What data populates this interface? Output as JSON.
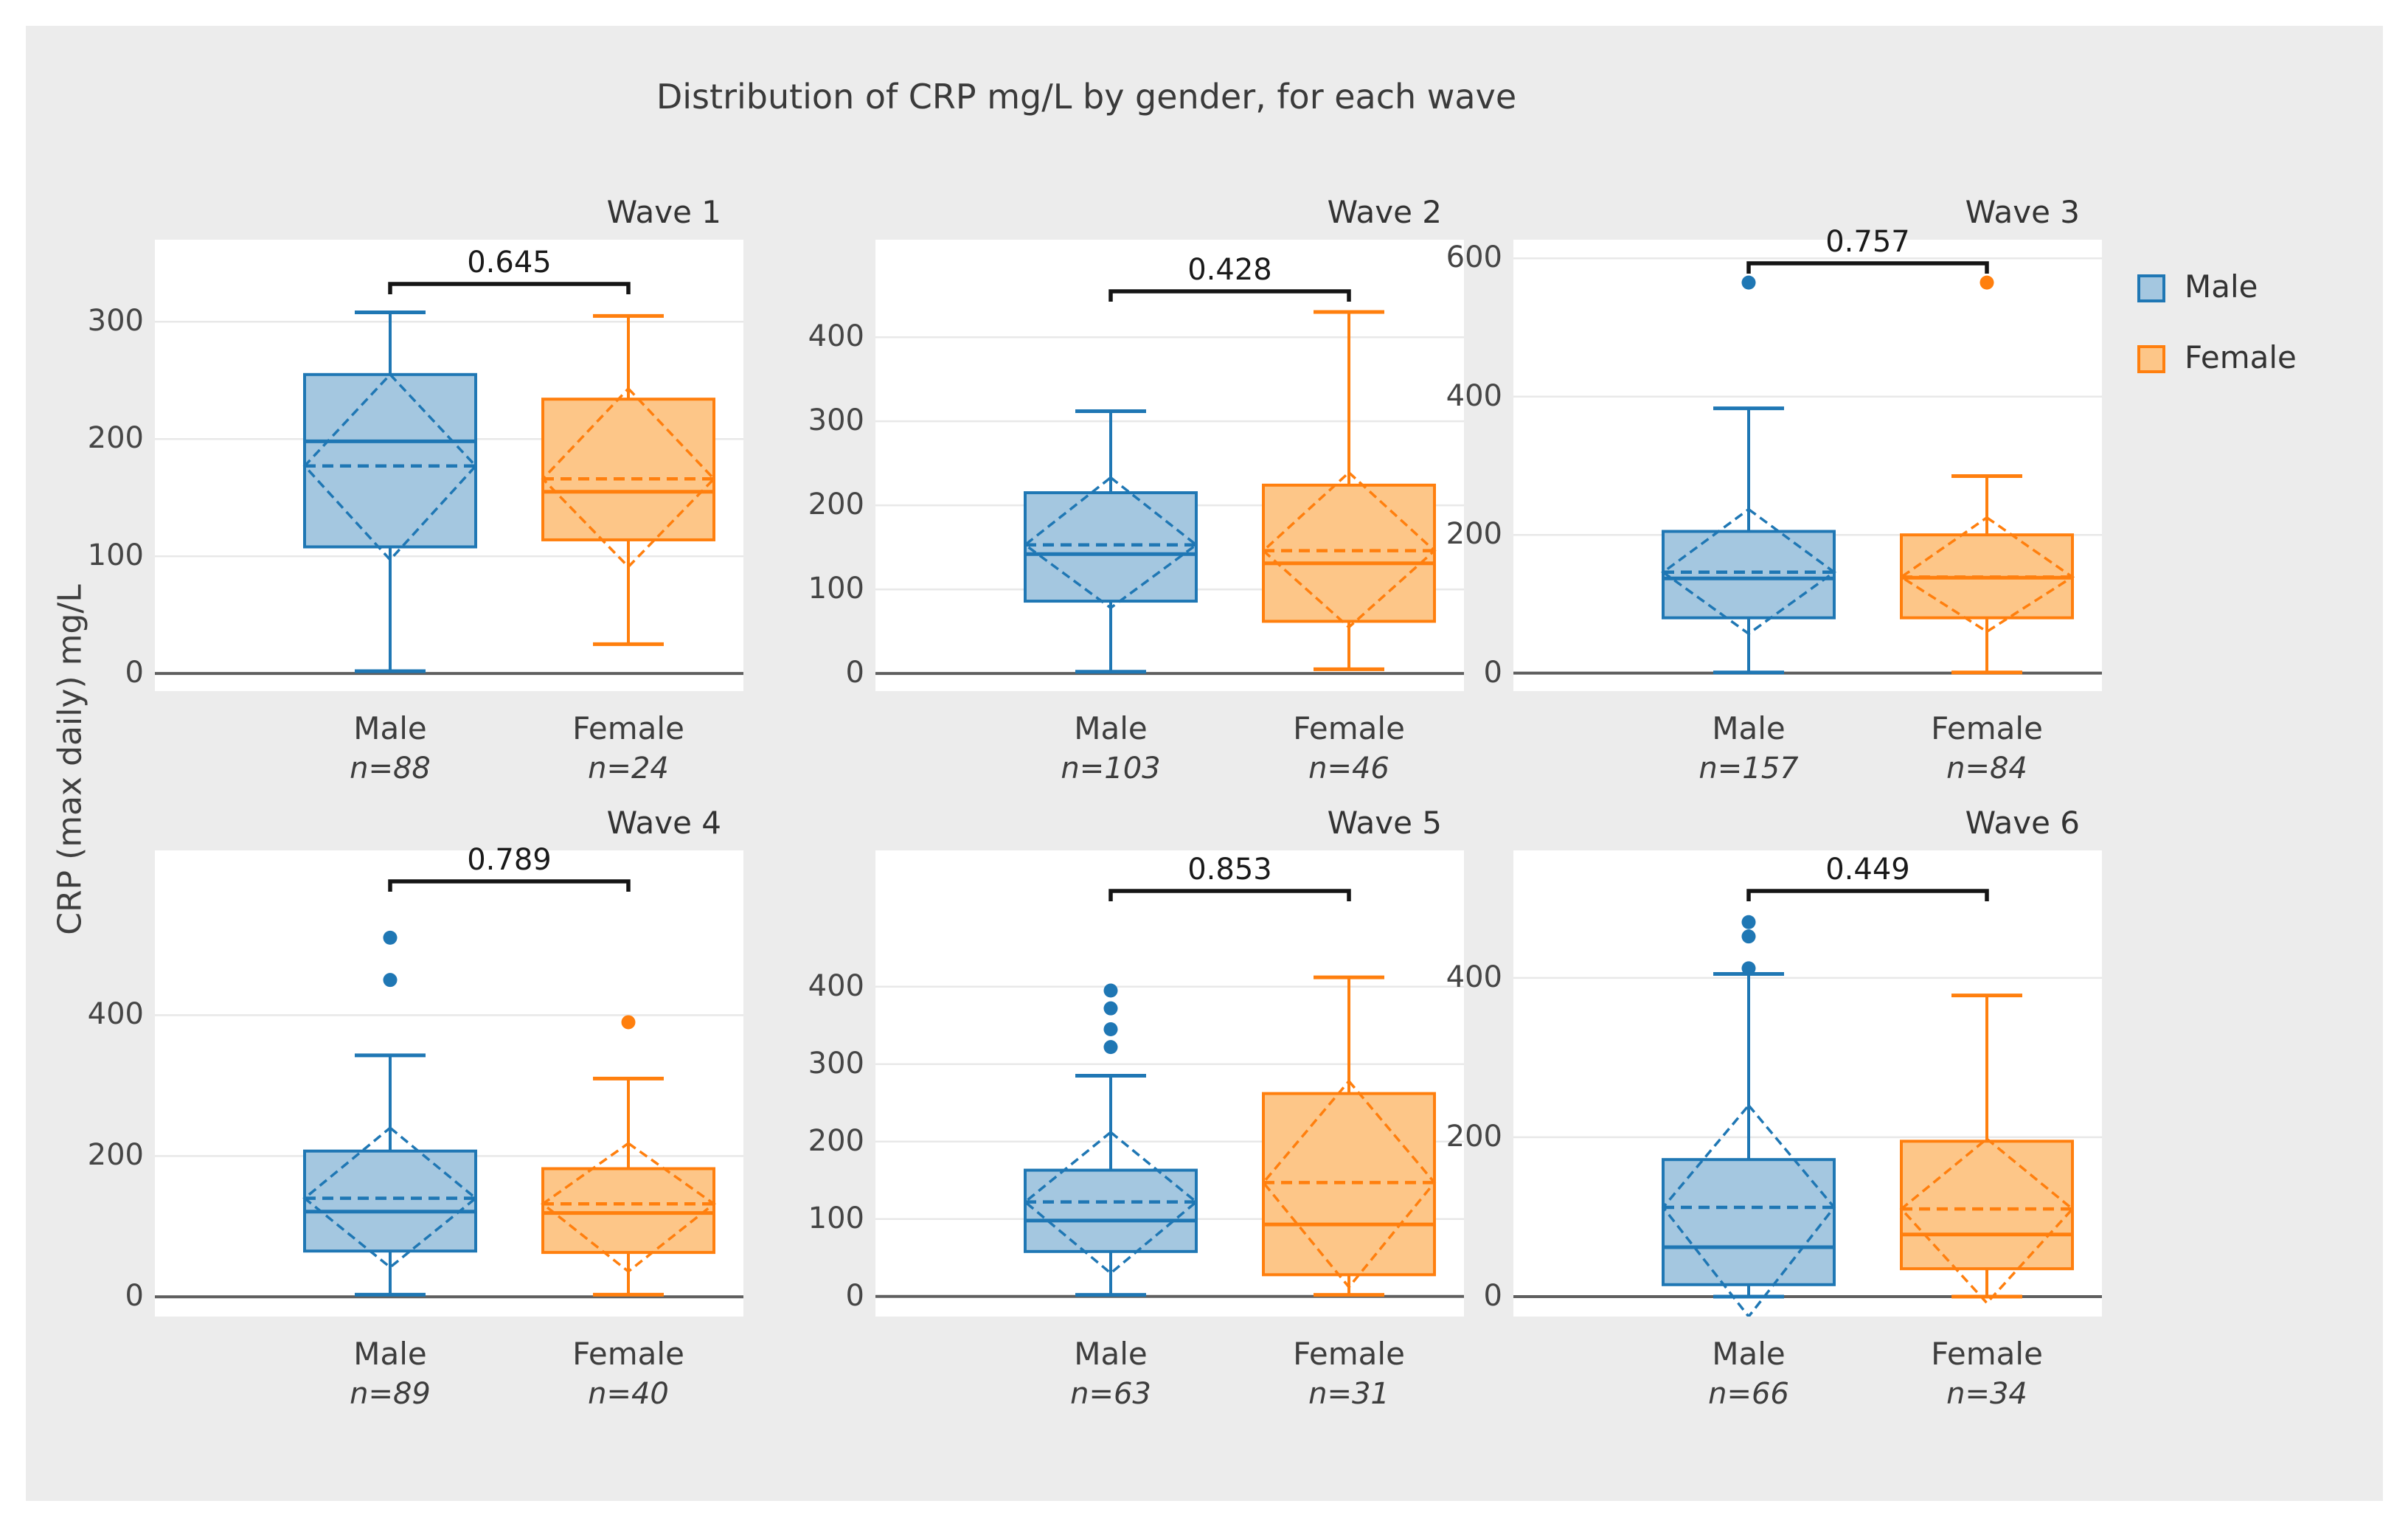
{
  "colors": {
    "male": "#1f77b4",
    "male_fill": "#a4c7e0",
    "female": "#ff7f0e",
    "female_fill": "#fdc688",
    "figure_bg": "#ececec",
    "axes_bg": "#ffffff",
    "grid": "#e8e8e8",
    "zero_line": "#5f5f5f",
    "bracket": "#151515",
    "text": "#3a3a3a"
  },
  "chart_data": {
    "type": "boxplot",
    "title": "Distribution of CRP mg/L by gender, for each wave",
    "ylabel": "CRP (max daily) mg/L",
    "grid": true,
    "legend": {
      "position": "upper right outside",
      "entries": [
        "Male",
        "Female"
      ]
    },
    "subplots": [
      {
        "title": "Wave 1",
        "p_value": "0.645",
        "ylim": [
          -15,
          370
        ],
        "yticks": [
          0,
          100,
          200,
          300
        ],
        "groups": [
          {
            "name": "Male",
            "n": 88,
            "n_label": "n=88",
            "color": "male",
            "whisker_low": 2,
            "q1": 108,
            "median": 198,
            "mean": 177,
            "q3": 255,
            "whisker_high": 308,
            "outliers": [],
            "diamond_top": 255,
            "diamond_bottom": 97
          },
          {
            "name": "Female",
            "n": 24,
            "n_label": "n=24",
            "color": "female",
            "whisker_low": 25,
            "q1": 114,
            "median": 155,
            "mean": 166,
            "q3": 234,
            "whisker_high": 305,
            "outliers": [],
            "diamond_top": 243,
            "diamond_bottom": 91
          }
        ]
      },
      {
        "title": "Wave 2",
        "p_value": "0.428",
        "ylim": [
          -21,
          516
        ],
        "yticks": [
          0,
          100,
          200,
          300,
          400
        ],
        "groups": [
          {
            "name": "Male",
            "n": 103,
            "n_label": "n=103",
            "color": "male",
            "whisker_low": 2,
            "q1": 86,
            "median": 142,
            "mean": 153,
            "q3": 215,
            "whisker_high": 312,
            "outliers": [],
            "diamond_top": 233,
            "diamond_bottom": 78
          },
          {
            "name": "Female",
            "n": 46,
            "n_label": "n=46",
            "color": "female",
            "whisker_low": 5,
            "q1": 62,
            "median": 131,
            "mean": 146,
            "q3": 224,
            "whisker_high": 430,
            "outliers": [],
            "diamond_top": 239,
            "diamond_bottom": 55
          }
        ]
      },
      {
        "title": "Wave 3",
        "p_value": "0.757",
        "ylim": [
          -26,
          627
        ],
        "yticks": [
          0,
          200,
          400,
          600
        ],
        "groups": [
          {
            "name": "Male",
            "n": 157,
            "n_label": "n=157",
            "color": "male",
            "whisker_low": 1,
            "q1": 80,
            "median": 137,
            "mean": 146,
            "q3": 205,
            "whisker_high": 383,
            "outliers": [
              565
            ],
            "diamond_top": 237,
            "diamond_bottom": 57
          },
          {
            "name": "Female",
            "n": 84,
            "n_label": "n=84",
            "color": "female",
            "whisker_low": 1,
            "q1": 80,
            "median": 138,
            "mean": 139,
            "q3": 200,
            "whisker_high": 285,
            "outliers": [
              565
            ],
            "diamond_top": 225,
            "diamond_bottom": 60
          }
        ]
      },
      {
        "title": "Wave 4",
        "p_value": "0.789",
        "ylim": [
          -28,
          634
        ],
        "yticks": [
          0,
          200,
          400
        ],
        "groups": [
          {
            "name": "Male",
            "n": 89,
            "n_label": "n=89",
            "color": "male",
            "whisker_low": 3,
            "q1": 65,
            "median": 121,
            "mean": 140,
            "q3": 207,
            "whisker_high": 343,
            "outliers": [
              450,
              510
            ],
            "diamond_top": 240,
            "diamond_bottom": 42
          },
          {
            "name": "Female",
            "n": 40,
            "n_label": "n=40",
            "color": "female",
            "whisker_low": 3,
            "q1": 63,
            "median": 119,
            "mean": 132,
            "q3": 182,
            "whisker_high": 310,
            "outliers": [
              390
            ],
            "diamond_top": 218,
            "diamond_bottom": 36
          }
        ]
      },
      {
        "title": "Wave 5",
        "p_value": "0.853",
        "ylim": [
          -26,
          576
        ],
        "yticks": [
          0,
          100,
          200,
          300,
          400
        ],
        "groups": [
          {
            "name": "Male",
            "n": 63,
            "n_label": "n=63",
            "color": "male",
            "whisker_low": 2,
            "q1": 58,
            "median": 98,
            "mean": 122,
            "q3": 163,
            "whisker_high": 285,
            "outliers": [
              322,
              345,
              372,
              395
            ],
            "diamond_top": 212,
            "diamond_bottom": 30
          },
          {
            "name": "Female",
            "n": 31,
            "n_label": "n=31",
            "color": "female",
            "whisker_low": 2,
            "q1": 28,
            "median": 93,
            "mean": 147,
            "q3": 262,
            "whisker_high": 412,
            "outliers": [],
            "diamond_top": 278,
            "diamond_bottom": 12
          }
        ]
      },
      {
        "title": "Wave 6",
        "p_value": "0.449",
        "ylim": [
          -25,
          560
        ],
        "yticks": [
          0,
          200,
          400
        ],
        "groups": [
          {
            "name": "Male",
            "n": 66,
            "n_label": "n=66",
            "color": "male",
            "whisker_low": 0,
            "q1": 15,
            "median": 62,
            "mean": 112,
            "q3": 172,
            "whisker_high": 405,
            "outliers": [
              412,
              452,
              470
            ],
            "diamond_top": 240,
            "diamond_bottom": -25
          },
          {
            "name": "Female",
            "n": 34,
            "n_label": "n=34",
            "color": "female",
            "whisker_low": 0,
            "q1": 35,
            "median": 78,
            "mean": 110,
            "q3": 195,
            "whisker_high": 378,
            "outliers": [],
            "diamond_top": 198,
            "diamond_bottom": -8
          }
        ]
      }
    ]
  }
}
